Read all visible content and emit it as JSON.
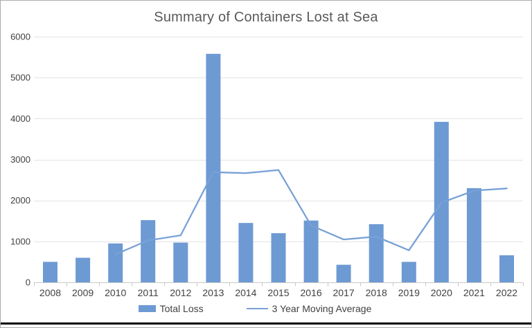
{
  "title": "Summary of Containers Lost at Sea",
  "legend": {
    "items": [
      {
        "label": "Total Loss",
        "swatch": "bar"
      },
      {
        "label": "3 Year Moving Average",
        "swatch": "line"
      }
    ]
  },
  "colors": {
    "bar": "#6D9AD3",
    "line": "#78A1D6",
    "gridline": "#E2E2E2",
    "axis_line": "#C8C8C8",
    "tick_text": "#404040",
    "title_text": "#595959",
    "frame_border": "#ABABAB",
    "bottom_rule": "#000000",
    "background": "#FFFFFF"
  },
  "chart_data": {
    "type": "bar",
    "title": "Summary of Containers Lost at Sea",
    "categories": [
      "2008",
      "2009",
      "2010",
      "2011",
      "2012",
      "2013",
      "2014",
      "2015",
      "2016",
      "2017",
      "2018",
      "2019",
      "2020",
      "2021",
      "2022"
    ],
    "series": [
      {
        "name": "Total Loss",
        "type": "bar",
        "values": [
          500,
          600,
          950,
          1520,
          970,
          5580,
          1450,
          1200,
          1510,
          430,
          1420,
          500,
          3920,
          2300,
          660
        ]
      },
      {
        "name": "3 Year Moving Average",
        "type": "line",
        "values": [
          null,
          null,
          683,
          1023,
          1147,
          2690,
          2667,
          2743,
          1387,
          1047,
          1117,
          783,
          1947,
          2240,
          2293
        ]
      }
    ],
    "xlabel": "",
    "ylabel": "",
    "ylim": [
      0,
      6000
    ],
    "yticks": [
      0,
      1000,
      2000,
      3000,
      4000,
      5000,
      6000
    ],
    "grid": "horizontal",
    "legend_position": "bottom"
  }
}
